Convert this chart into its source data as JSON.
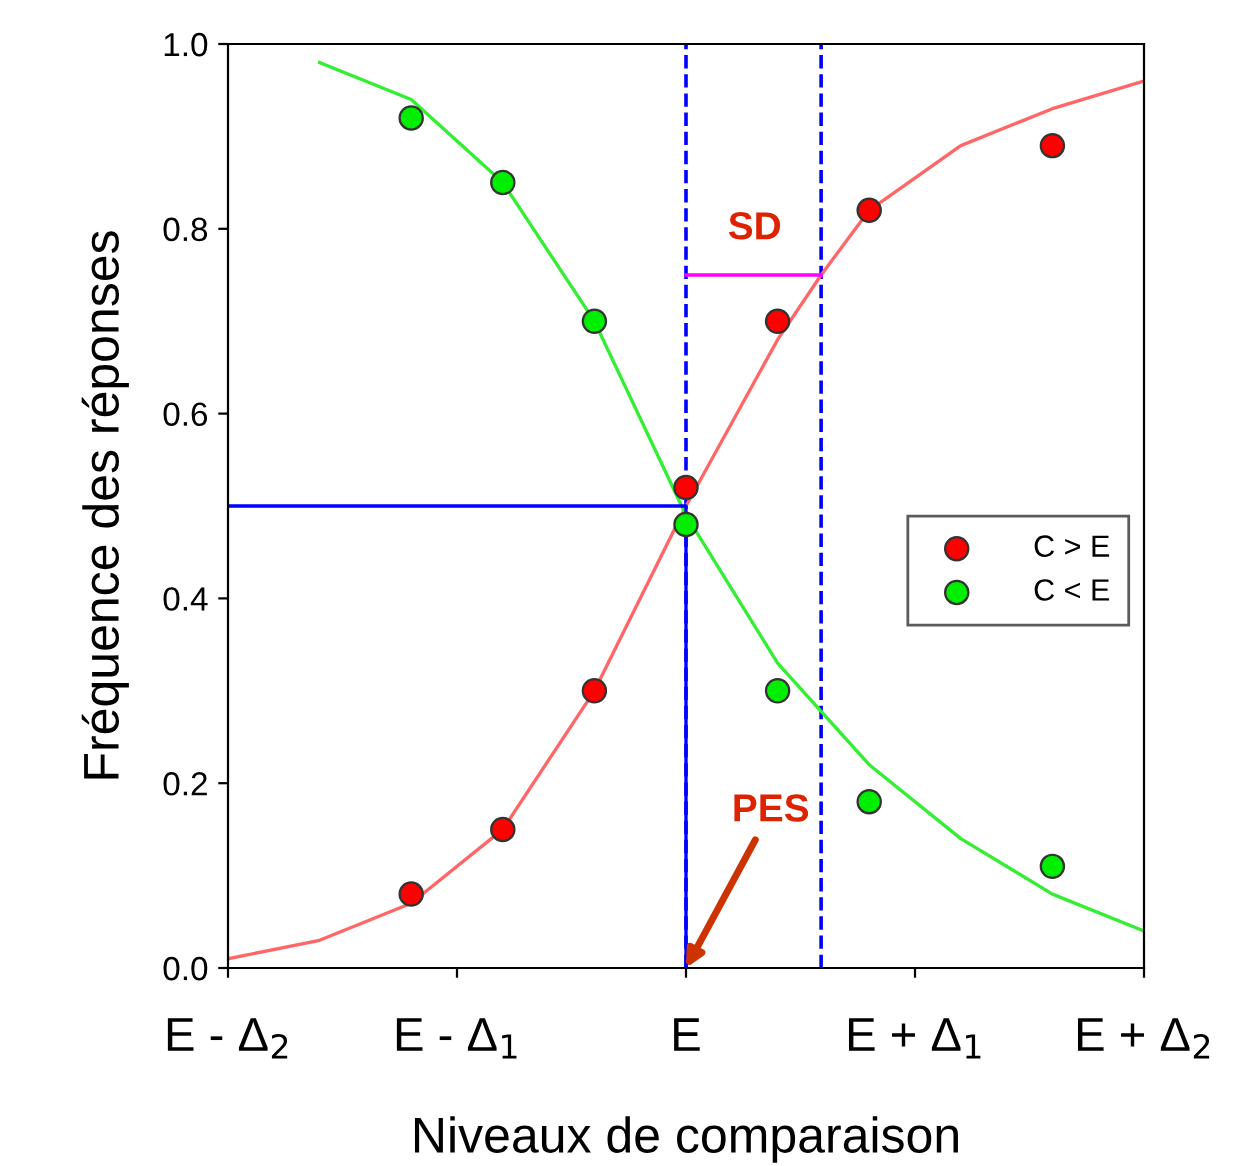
{
  "chart_data": {
    "type": "scatter",
    "xlabel": "Niveaux de comparaison",
    "ylabel": "Fréquence des réponses",
    "xlim": [
      -2,
      2
    ],
    "ylim": [
      0,
      1.0
    ],
    "xticks": [
      {
        "value": -2,
        "label": "E - Δ$_{2}$"
      },
      {
        "value": -1,
        "label": "E - Δ$_{1}$"
      },
      {
        "value": 0,
        "label": "E"
      },
      {
        "value": 1,
        "label": "E + Δ$_{1}$"
      },
      {
        "value": 2,
        "label": "E + Δ$_{2}$"
      }
    ],
    "yticks": [
      {
        "value": 0,
        "label": "0.0"
      },
      {
        "value": 0.2,
        "label": "0.2"
      },
      {
        "value": 0.4,
        "label": "0.4"
      },
      {
        "value": 0.6,
        "label": "0.6"
      },
      {
        "value": 0.8,
        "label": "0.8"
      },
      {
        "value": 1.0,
        "label": "1.0"
      }
    ],
    "series": [
      {
        "type": "line",
        "marker": "none",
        "color": "#ff6666",
        "x": [
          -2,
          -1.6,
          -1.2,
          -0.8,
          -0.4,
          0,
          0.4,
          0.59,
          0.8,
          1.2,
          1.6,
          2
        ],
        "values": [
          0.01,
          0.03,
          0.07,
          0.15,
          0.3,
          0.5,
          0.68,
          0.75,
          0.82,
          0.89,
          0.93,
          0.96
        ]
      },
      {
        "type": "line",
        "marker": "none",
        "color": "#33ee33",
        "x": [
          -1.6,
          -1.2,
          -0.8,
          -0.4,
          0,
          0.4,
          0.8,
          1.2,
          1.6,
          2
        ],
        "values": [
          0.98,
          0.94,
          0.85,
          0.7,
          0.49,
          0.33,
          0.22,
          0.14,
          0.08,
          0.04
        ]
      },
      {
        "type": "line",
        "marker": "none",
        "color": "#0000ff",
        "x": [
          -2,
          0,
          0
        ],
        "values": [
          0.5,
          0.5,
          0
        ]
      },
      {
        "type": "line",
        "marker": "none",
        "color": "#ff00ff",
        "x": [
          0,
          0.59
        ],
        "values": [
          0.75,
          0.75
        ]
      },
      {
        "name": "C > E",
        "color": "#ff0000",
        "x": [
          -1.2,
          -0.8,
          -0.4,
          0,
          0.4,
          0.8,
          1.6
        ],
        "values": [
          0.08,
          0.15,
          0.3,
          0.52,
          0.7,
          0.82,
          0.89
        ]
      },
      {
        "name": "C < E",
        "color": "#00ee00",
        "x": [
          -1.2,
          -0.8,
          -0.4,
          0,
          0.4,
          0.8,
          1.6
        ],
        "values": [
          0.92,
          0.85,
          0.7,
          0.48,
          0.3,
          0.18,
          0.11
        ]
      }
    ],
    "ref_lines": [
      {
        "axis": "x",
        "value": 0,
        "color": "#0000ff",
        "line_style": "dashed"
      },
      {
        "axis": "x",
        "value": 0.59,
        "color": "#0000ff",
        "line_style": "dashed"
      }
    ],
    "annotations": [
      {
        "text": "SD",
        "x": 0.3,
        "y": 0.75
      },
      {
        "text": "PES",
        "x": 0,
        "y": 0
      }
    ],
    "marker": "circle",
    "legend": "right",
    "grid": false
  }
}
